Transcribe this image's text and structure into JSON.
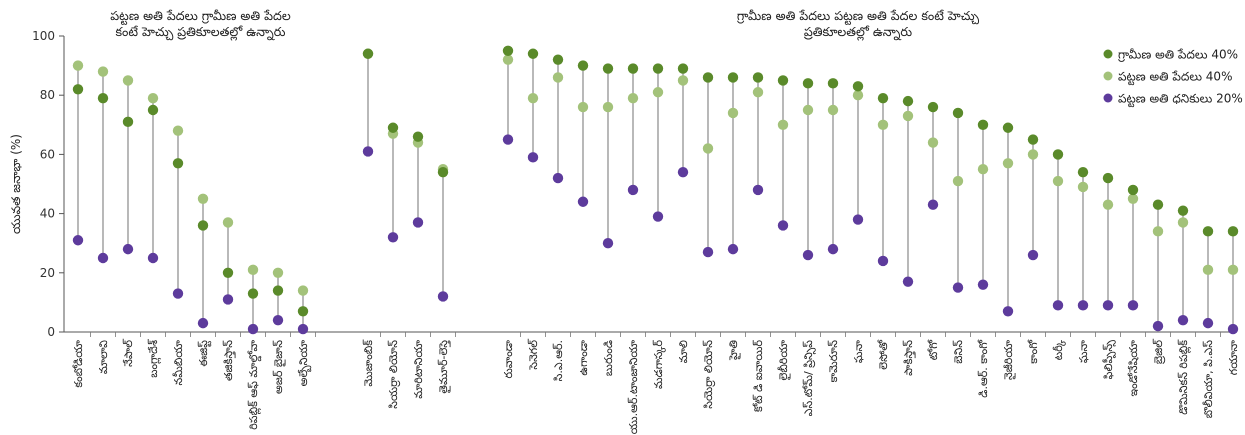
{
  "chart_data": {
    "type": "dot-range",
    "ylabel": "యువత జనాభా (%)",
    "ylim": [
      0,
      100
    ],
    "yticks": [
      0,
      20,
      40,
      60,
      80,
      100
    ],
    "legend_position": "top-right",
    "legend": [
      {
        "name": "గ్రామీణ అతి పేదలు 40%",
        "color": "#5a8a2a"
      },
      {
        "name": "పట్టణ అతి పేదలు 40%",
        "color": "#a3c27a"
      },
      {
        "name": "పట్టణ అతి ధనికులు 20%",
        "color": "#5d3b9c"
      }
    ],
    "annotations": [
      {
        "lines": [
          "పట్టణ అతి పేదలు గ్రామీణ అతి పేదల",
          "కంటే హెచ్చు ప్రతికూలతల్లో ఉన్నారు"
        ]
      },
      {
        "lines": [
          "గ్రామీణ అతి పేదలు పట్టణ అతి పేదల కంటే హెచ్చు",
          "ప్రతికూలతల్లో ఉన్నారు"
        ]
      }
    ],
    "groups": [
      {
        "categories": [
          "కంబోడియా",
          "మాలావి",
          "నేపాల్",
          "బంగ్లాదేశ్",
          "నమీబియా",
          "ఈజిప్ట్",
          "తజికిస్తాన్",
          "రిపబ్లిక్ ఆఫ్ మాల్డోవా",
          "అజర్ బైజాన్",
          "అల్బేనియా"
        ],
        "rural_poorest": [
          82,
          79,
          71,
          75,
          57,
          36,
          20,
          13,
          14,
          7
        ],
        "urban_poorest": [
          90,
          88,
          85,
          79,
          68,
          45,
          37,
          21,
          20,
          14
        ],
        "urban_richest": [
          31,
          25,
          28,
          25,
          13,
          3,
          11,
          1,
          4,
          1
        ]
      },
      {
        "categories": [
          "మొజాంబిక్",
          "సియర్రా లియోన్",
          "మారిటానియా",
          "తైమూర్-లెస్తె"
        ],
        "rural_poorest": [
          94,
          69,
          66,
          54
        ],
        "urban_poorest": [
          94,
          67,
          64,
          55
        ],
        "urban_richest": [
          61,
          32,
          37,
          12
        ]
      },
      {
        "categories": [
          "రువాండా",
          "సెనెగల్",
          "సి.ఎ.ఆర్.",
          "ఉగాండా",
          "బురుండి",
          "యు.ఆర్.టాంజానియా",
          "మడగాస్కర్",
          "మాలి",
          "సియెర్రా లియోన్",
          "హైతి",
          "కోట్ డి ఐవాయిర్",
          "లైబీరియా",
          "ఎస్.టోమ్/ ప్రిన్సిప్",
          "కామెరూన్",
          "ఘనా",
          "లెసోతో",
          "పాకిస్తాన్",
          "టోగో",
          "బెనిన్",
          "డి.ఆర్. కాంగో",
          "నైజీరియా",
          "కాంగో",
          "టర్కీ",
          "ఘనా",
          "ఫిలిప్పీన్స్",
          "ఇండోనేషియా",
          "బ్రెజిల్",
          "డొమినికన్ రిపబ్లిక్",
          "బొలీవియా, పి.ఎస్",
          "గయానా",
          "కొలంబియా"
        ],
        "rural_poorest": [
          95,
          94,
          92,
          90,
          89,
          89,
          89,
          89,
          86,
          86,
          86,
          85,
          84,
          84,
          83,
          79,
          78,
          76,
          74,
          70,
          69,
          65,
          60,
          54,
          52,
          48,
          43,
          41,
          34,
          34,
          27
        ],
        "urban_poorest": [
          92,
          79,
          86,
          76,
          76,
          79,
          81,
          85,
          62,
          74,
          81,
          70,
          75,
          75,
          80,
          70,
          73,
          64,
          51,
          55,
          57,
          60,
          51,
          49,
          43,
          45,
          34,
          37,
          21,
          21,
          18
        ],
        "urban_richest": [
          65,
          59,
          52,
          44,
          30,
          48,
          39,
          54,
          27,
          28,
          48,
          36,
          26,
          28,
          38,
          24,
          17,
          43,
          15,
          16,
          7,
          26,
          9,
          9,
          9,
          9,
          2,
          4,
          3,
          1,
          2
        ]
      }
    ]
  }
}
